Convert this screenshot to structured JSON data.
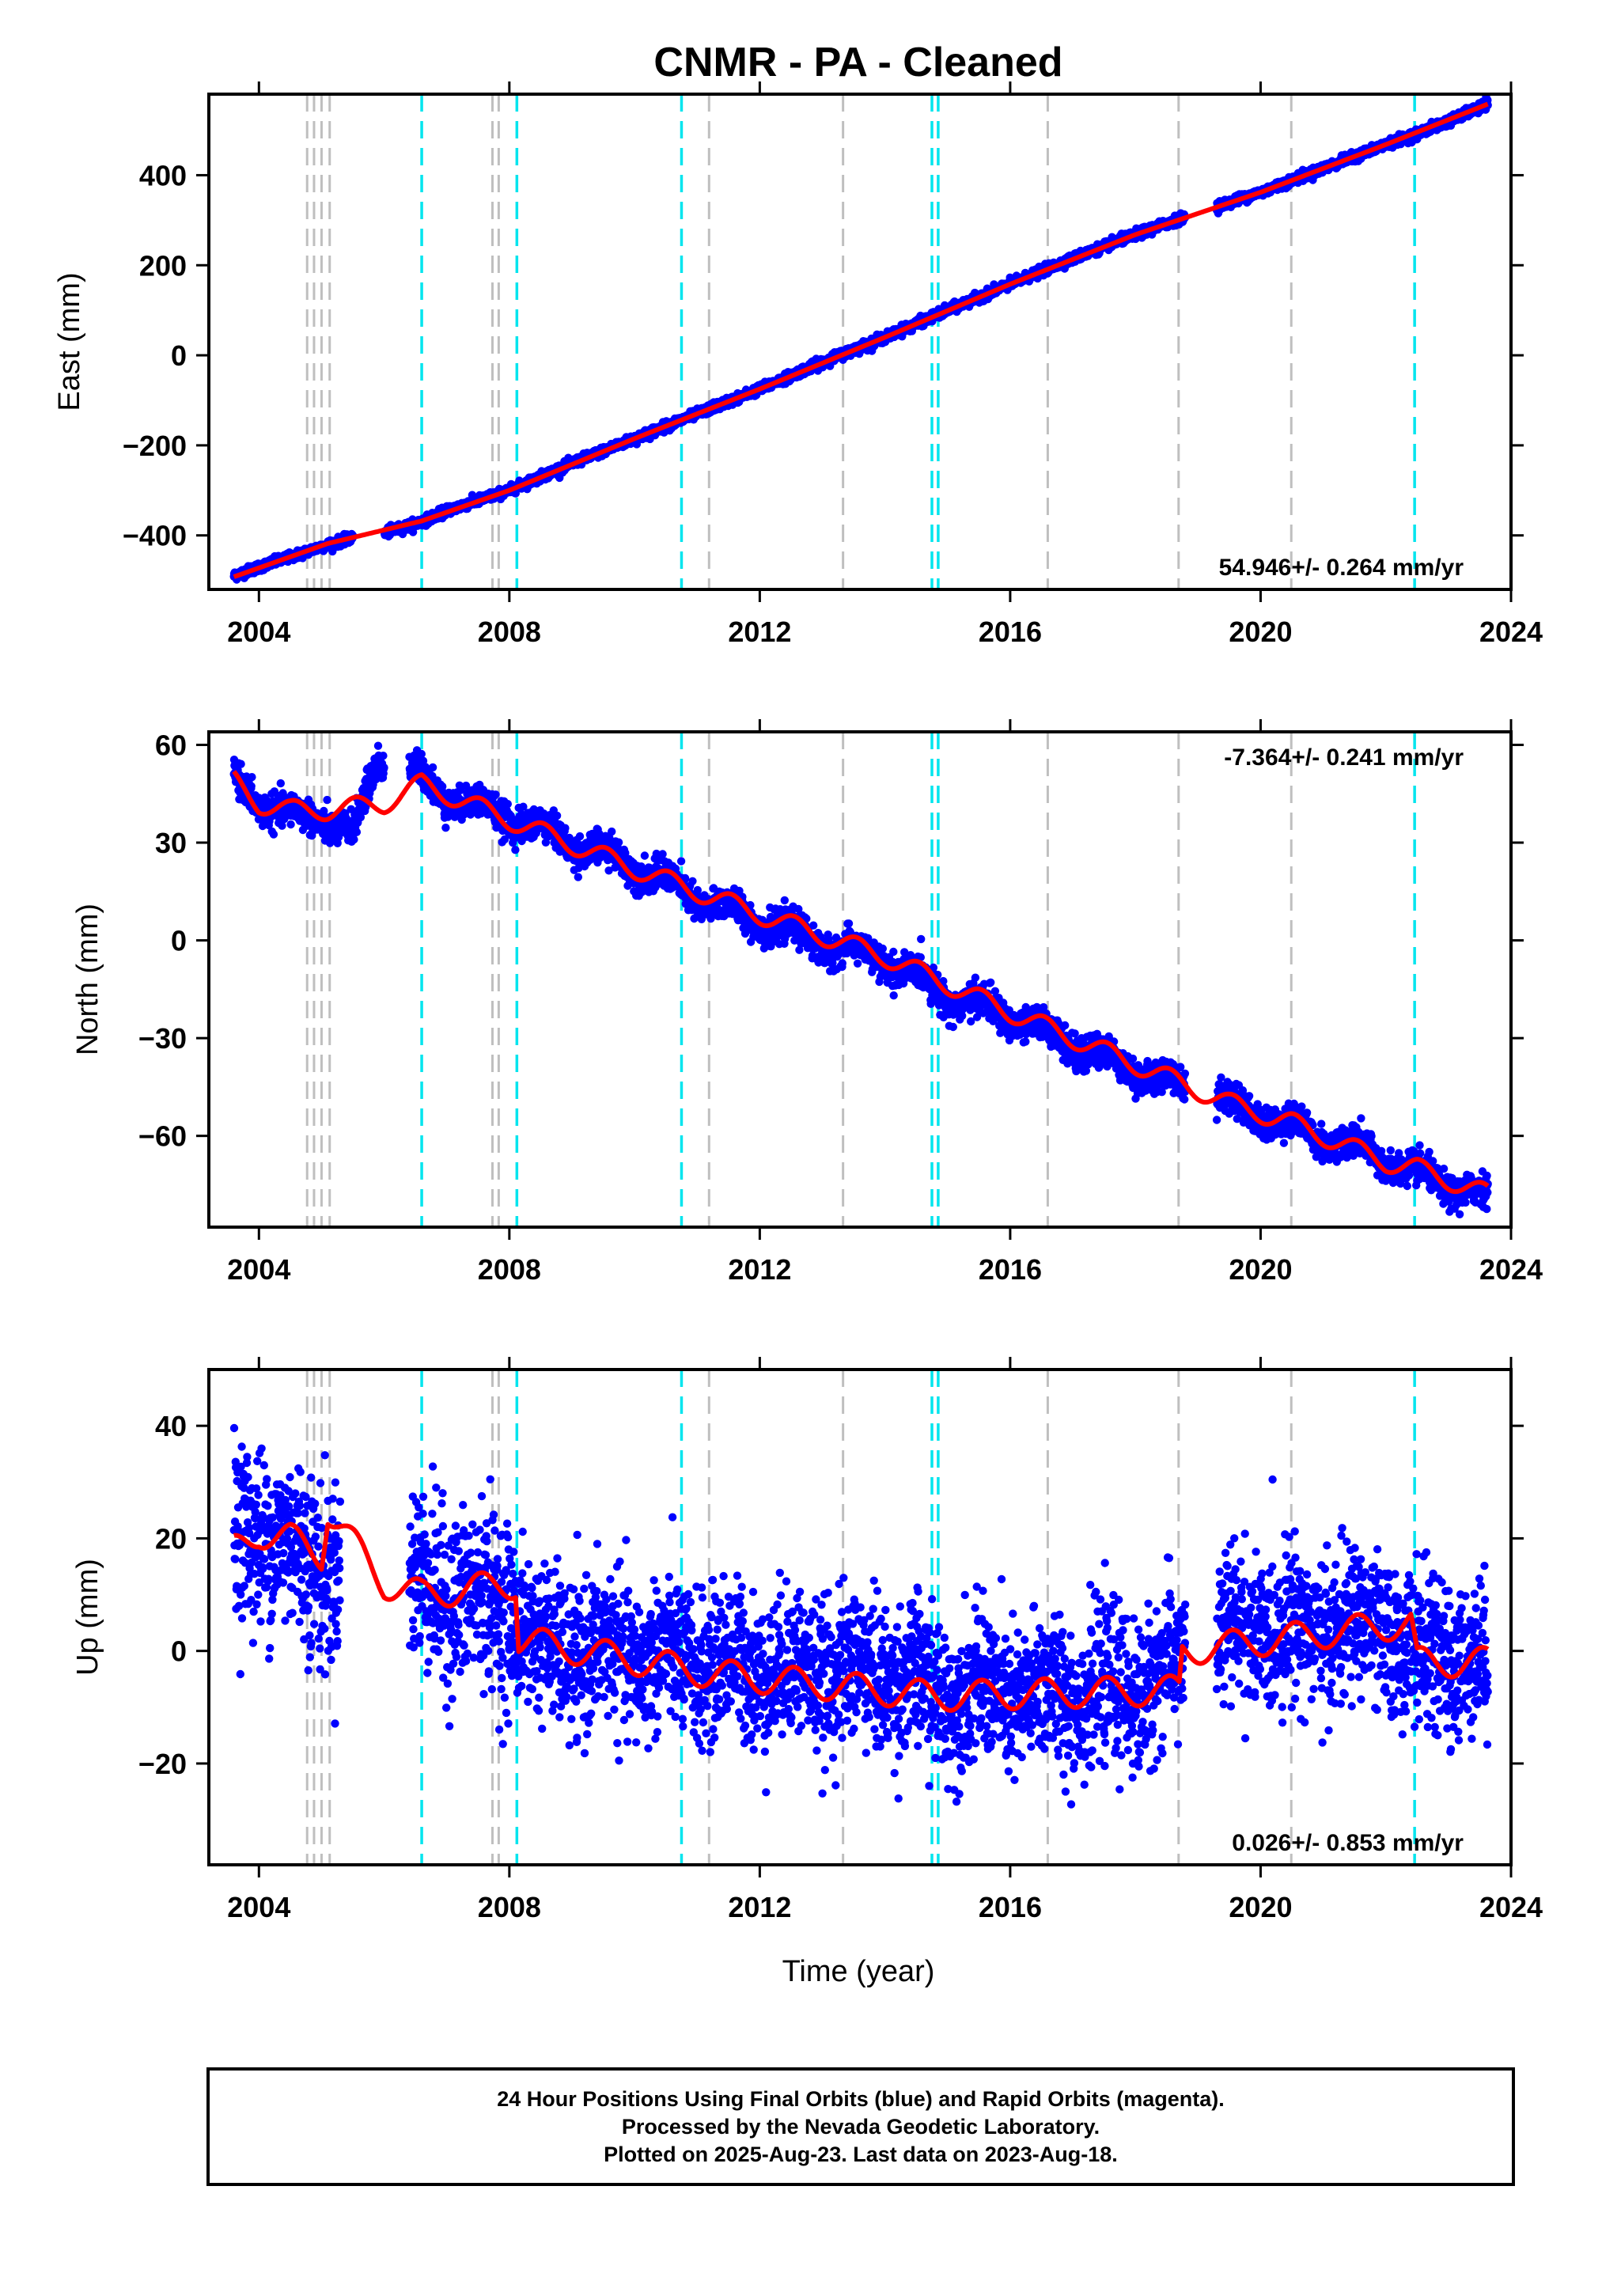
{
  "title": "CNMR  - PA - Cleaned",
  "footer": {
    "line1": "24 Hour Positions Using Final Orbits (blue) and Rapid Orbits (magenta).",
    "line2": "Processed by the Nevada Geodetic Laboratory.",
    "line3": "Plotted on 2025-Aug-23. Last data on 2023-Aug-18."
  },
  "colors": {
    "data": "#0000ff",
    "model": "#ff0000",
    "equipment_change": "#00e5ee",
    "earthquake": "#bfbfbf"
  },
  "chart_data": [
    {
      "type": "scatter",
      "panel": "east",
      "ylabel": "East (mm)",
      "xlabel": "",
      "xlim": [
        2003.2,
        2024.0
      ],
      "ylim": [
        -520,
        580
      ],
      "xticks": [
        2004,
        2008,
        2012,
        2016,
        2020,
        2024
      ],
      "yticks": [
        -400,
        -200,
        0,
        200,
        400
      ],
      "rate_label": "54.946+/- 0.264 mm/yr",
      "rate_position": "bottom-right",
      "data_span": [
        2003.6,
        2023.63
      ],
      "gaps": [
        [
          2005.5,
          2006.0
        ],
        [
          2018.8,
          2019.3
        ]
      ],
      "series": [
        {
          "name": "",
          "x": [
            2003.6,
            2004.0,
            2004.5,
            2005.0,
            2005.5,
            2006.0,
            2006.6,
            2007.0,
            2008.0,
            2009.0,
            2010.0,
            2011.0,
            2012.0,
            2013.0,
            2014.0,
            2015.0,
            2016.0,
            2017.0,
            2018.0,
            2018.8,
            2019.5,
            2020.0,
            2021.0,
            2022.0,
            2022.5,
            2023.0,
            2023.63
          ],
          "y": [
            -490,
            -470,
            -448,
            -425,
            -405,
            -395,
            -370,
            -345,
            -300,
            -240,
            -185,
            -130,
            -75,
            -15,
            40,
            100,
            158,
            215,
            268,
            308,
            340,
            362,
            415,
            468,
            492,
            520,
            558
          ]
        }
      ],
      "model": {
        "x": [
          2003.6,
          2005.1,
          2006.6,
          2008.0,
          2010.0,
          2012.0,
          2014.0,
          2016.0,
          2018.0,
          2020.0,
          2022.0,
          2023.63
        ],
        "y": [
          -492,
          -418,
          -368,
          -300,
          -185,
          -75,
          40,
          158,
          268,
          362,
          468,
          558
        ]
      }
    },
    {
      "type": "scatter",
      "panel": "north",
      "ylabel": "North (mm)",
      "xlabel": "",
      "xlim": [
        2003.2,
        2024.0
      ],
      "ylim": [
        -88,
        64
      ],
      "xticks": [
        2004,
        2008,
        2012,
        2016,
        2020,
        2024
      ],
      "yticks": [
        -60,
        -30,
        0,
        30,
        60
      ],
      "rate_label": "-7.364+/- 0.241 mm/yr",
      "rate_position": "top-right",
      "data_span": [
        2003.6,
        2023.63
      ],
      "gaps": [
        [
          2006.0,
          2006.4
        ],
        [
          2018.8,
          2019.3
        ]
      ],
      "series": [
        {
          "name": "",
          "x": [
            2003.6,
            2004.0,
            2004.5,
            2005.0,
            2005.5,
            2005.9,
            2006.6,
            2007.0,
            2008.0,
            2009.0,
            2010.0,
            2011.0,
            2012.0,
            2013.0,
            2014.0,
            2015.0,
            2016.0,
            2017.0,
            2018.0,
            2018.8,
            2019.5,
            2020.0,
            2021.0,
            2022.0,
            2022.5,
            2023.0,
            2023.63
          ],
          "y": [
            49,
            43,
            38,
            38,
            32,
            56,
            50,
            44,
            38,
            30,
            23,
            13,
            6,
            -1,
            -6,
            -17,
            -23,
            -32,
            -40,
            -45,
            -50,
            -54,
            -60,
            -67,
            -72,
            -75,
            -79
          ]
        }
      ],
      "model": {
        "x": [
          2003.6,
          2004.0,
          2004.5,
          2005.1,
          2006.0,
          2006.6,
          2008.0,
          2010.0,
          2012.0,
          2014.0,
          2016.0,
          2018.0,
          2019.5,
          2020.5,
          2022.0,
          2022.5,
          2023.63
        ],
        "y": [
          49,
          42,
          40,
          40,
          42,
          48,
          37,
          22,
          8,
          -5,
          -22,
          -38,
          -50,
          -56,
          -68,
          -70,
          -78
        ]
      }
    },
    {
      "type": "scatter",
      "panel": "up",
      "ylabel": "Up (mm)",
      "xlabel": "Time (year)",
      "xlim": [
        2003.2,
        2024.0
      ],
      "ylim": [
        -38,
        50
      ],
      "xticks": [
        2004,
        2008,
        2012,
        2016,
        2020,
        2024
      ],
      "yticks": [
        -20,
        0,
        20,
        40
      ],
      "rate_label": "0.026+/- 0.853 mm/yr",
      "rate_position": "bottom-right",
      "data_span": [
        2003.6,
        2023.63
      ],
      "gaps": [
        [
          2005.3,
          2006.4
        ],
        [
          2018.8,
          2019.3
        ]
      ],
      "series": [
        {
          "name": "",
          "x": [
            2003.6,
            2004.0,
            2004.5,
            2005.0,
            2006.6,
            2007.0,
            2008.0,
            2008.5,
            2010.0,
            2012.0,
            2014.0,
            2014.8,
            2016.0,
            2018.0,
            2019.5,
            2020.0,
            2021.0,
            2022.0,
            2022.5,
            2023.0,
            2023.63
          ],
          "y": [
            20,
            22,
            18,
            15,
            12,
            10,
            8,
            0,
            -1,
            -3,
            -4,
            -7,
            -8,
            -7,
            3,
            4,
            4,
            4,
            -1,
            -1,
            -2
          ]
        }
      ],
      "model": {
        "x": [
          2003.6,
          2004.0,
          2004.5,
          2005.0,
          2005.1,
          2006.0,
          2006.6,
          2008.1,
          2008.15,
          2011.2,
          2014.8,
          2018.7,
          2018.75,
          2022.4,
          2022.5,
          2023.63
        ],
        "y": [
          18,
          21,
          20,
          17,
          25,
          12,
          10,
          12,
          2,
          -4,
          -8,
          -7,
          0,
          5,
          -2,
          -2
        ]
      }
    }
  ],
  "events": {
    "earthquake_lines": [
      2004.77,
      2004.88,
      2005.0,
      2005.13,
      2007.73,
      2007.83,
      2011.19,
      2013.33,
      2016.6,
      2018.69,
      2020.49
    ],
    "equipment_lines": [
      2006.6,
      2008.12,
      2010.75,
      2014.75,
      2014.85,
      2022.46
    ]
  }
}
